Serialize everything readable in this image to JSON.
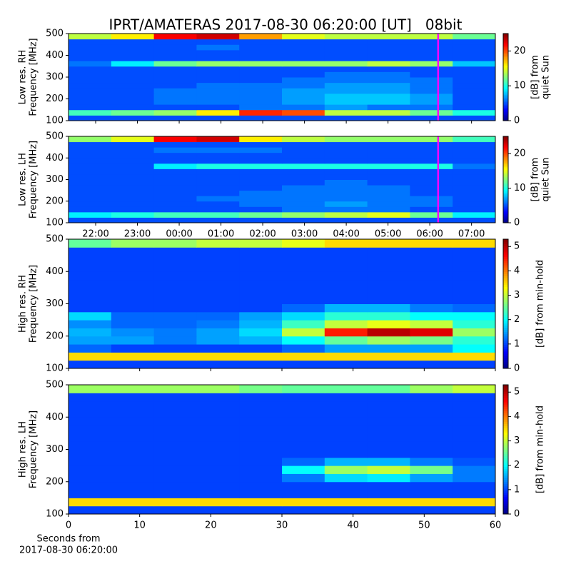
{
  "chart_data": [
    {
      "type": "heatmap",
      "title": "IPRT/AMATERAS 2017-08-30 06:20:00 [UT]   08bit",
      "ylabel": [
        "Low res. RH",
        "Frequency [MHz]"
      ],
      "ylim": [
        100,
        500
      ],
      "yticks": [
        100,
        200,
        300,
        400,
        500
      ],
      "xlim": [
        21.35,
        31.57
      ],
      "xticks": [
        22,
        23,
        24,
        25,
        26,
        27,
        28,
        29,
        30,
        31
      ],
      "xticklabels": false,
      "colormap": "jet",
      "colorbar": {
        "label": [
          "[dB] from",
          "quiet Sun"
        ],
        "lim": [
          0,
          25
        ],
        "ticks": [
          0,
          10,
          20
        ]
      },
      "marker": {
        "x": 30.2,
        "color": "#ff00ff"
      },
      "z": [
        [
          5,
          5,
          5,
          5,
          5,
          5,
          5,
          5,
          5,
          5
        ],
        [
          11,
          12,
          13,
          16,
          21,
          20,
          14,
          14,
          12,
          10
        ],
        [
          5,
          5,
          5,
          5,
          6,
          6,
          7,
          6,
          6,
          5
        ],
        [
          5,
          5,
          6,
          6,
          6,
          7,
          8,
          8,
          7,
          5
        ],
        [
          5,
          5,
          6,
          6,
          6,
          7,
          8,
          8,
          7,
          5
        ],
        [
          5,
          5,
          6,
          6,
          6,
          7,
          7,
          7,
          6,
          5
        ],
        [
          5,
          5,
          5,
          6,
          6,
          6,
          7,
          7,
          6,
          5
        ],
        [
          5,
          5,
          5,
          5,
          5,
          6,
          6,
          6,
          6,
          5
        ],
        [
          5,
          5,
          5,
          5,
          5,
          5,
          6,
          6,
          5,
          5
        ],
        [
          5,
          5,
          5,
          5,
          5,
          5,
          5,
          5,
          5,
          5
        ],
        [
          6,
          9,
          12,
          13,
          13,
          13,
          13,
          14,
          13,
          8
        ],
        [
          5,
          5,
          5,
          5,
          5,
          5,
          5,
          5,
          5,
          5
        ],
        [
          5,
          5,
          5,
          5,
          5,
          5,
          5,
          5,
          5,
          5
        ],
        [
          5,
          5,
          5,
          6,
          5,
          5,
          5,
          5,
          5,
          5
        ],
        [
          5,
          5,
          5,
          5,
          5,
          5,
          5,
          5,
          5,
          5
        ],
        [
          14,
          16,
          22,
          23,
          18,
          15,
          14,
          14,
          14,
          12
        ]
      ]
    },
    {
      "type": "heatmap",
      "ylabel": [
        "Low res. LH",
        "Frequency [MHz]"
      ],
      "ylim": [
        100,
        500
      ],
      "yticks": [
        100,
        200,
        300,
        400,
        500
      ],
      "xlim": [
        21.35,
        31.57
      ],
      "xticks": [
        {
          "value": 22,
          "label": "22:00"
        },
        {
          "value": 23,
          "label": "23:00"
        },
        {
          "value": 24,
          "label": "00:00"
        },
        {
          "value": 25,
          "label": "01:00"
        },
        {
          "value": 26,
          "label": "02:00"
        },
        {
          "value": 27,
          "label": "03:00"
        },
        {
          "value": 28,
          "label": "04:00"
        },
        {
          "value": 29,
          "label": "05:00"
        },
        {
          "value": 30,
          "label": "06:00"
        },
        {
          "value": 31,
          "label": "07:00"
        }
      ],
      "xticklabels": true,
      "colormap": "jet",
      "colorbar": {
        "label": [
          "[dB] from",
          "quiet Sun"
        ],
        "lim": [
          0,
          25
        ],
        "ticks": [
          0,
          10,
          20
        ]
      },
      "marker": {
        "x": 30.2,
        "color": "#ff00ff"
      },
      "z": [
        [
          5,
          5,
          5,
          5,
          5,
          5,
          5,
          5,
          5,
          5
        ],
        [
          9,
          10,
          11,
          11,
          12,
          13,
          14,
          15,
          12,
          9
        ],
        [
          5,
          5,
          5,
          5,
          5,
          6,
          6,
          6,
          5,
          5
        ],
        [
          5,
          5,
          5,
          5,
          6,
          6,
          7,
          6,
          6,
          5
        ],
        [
          5,
          5,
          5,
          6,
          6,
          6,
          6,
          6,
          6,
          5
        ],
        [
          5,
          5,
          5,
          5,
          6,
          6,
          6,
          6,
          5,
          5
        ],
        [
          5,
          5,
          5,
          5,
          5,
          6,
          6,
          6,
          5,
          5
        ],
        [
          5,
          5,
          5,
          5,
          5,
          5,
          6,
          5,
          5,
          5
        ],
        [
          5,
          5,
          5,
          5,
          5,
          5,
          5,
          5,
          5,
          5
        ],
        [
          5,
          5,
          5,
          5,
          5,
          5,
          5,
          5,
          5,
          5
        ],
        [
          5,
          5,
          9,
          10,
          10,
          10,
          10,
          10,
          10,
          6
        ],
        [
          5,
          5,
          5,
          5,
          5,
          5,
          5,
          5,
          5,
          5
        ],
        [
          5,
          5,
          5,
          5,
          5,
          5,
          5,
          5,
          5,
          5
        ],
        [
          5,
          5,
          6,
          6,
          6,
          5,
          5,
          5,
          5,
          5
        ],
        [
          5,
          5,
          5,
          5,
          5,
          5,
          5,
          5,
          5,
          5
        ],
        [
          13,
          15,
          22,
          23,
          16,
          14,
          13,
          13,
          13,
          11
        ]
      ]
    },
    {
      "type": "heatmap",
      "ylabel": [
        "High res. RH",
        "Frequency [MHz]"
      ],
      "ylim": [
        100,
        500
      ],
      "yticks": [
        100,
        200,
        300,
        400,
        500
      ],
      "xlim": [
        0,
        60
      ],
      "xticks": [
        0,
        10,
        20,
        30,
        40,
        50,
        60
      ],
      "xticklabels": false,
      "colormap": "jet",
      "colorbar": {
        "label": [
          "[dB] from min-hold"
        ],
        "lim": [
          0,
          5.3
        ],
        "ticks": [
          0,
          1,
          2,
          3,
          4,
          5
        ]
      },
      "z": [
        [
          1,
          1,
          1,
          1,
          1,
          1,
          1,
          1,
          1,
          1
        ],
        [
          3.5,
          3.5,
          3.5,
          3.5,
          3.5,
          3.5,
          3.5,
          3.5,
          3.5,
          3.5
        ],
        [
          1.2,
          1,
          1,
          1,
          1,
          1.2,
          1.5,
          1.5,
          1.5,
          2
        ],
        [
          1.5,
          1.5,
          1.3,
          1.5,
          1.6,
          2,
          2.5,
          2.8,
          2.6,
          2.2
        ],
        [
          1.6,
          1.4,
          1.3,
          1.5,
          1.8,
          3,
          4.5,
          5,
          4.8,
          2.8
        ],
        [
          1.4,
          1.2,
          1.2,
          1.3,
          1.6,
          2.3,
          3,
          3.2,
          3,
          2.2
        ],
        [
          1.8,
          1.2,
          1.2,
          1.2,
          1.5,
          1.8,
          2.2,
          2.2,
          2,
          2
        ],
        [
          1,
          1,
          1,
          1,
          1,
          1.2,
          1.6,
          1.6,
          1.3,
          1.2
        ],
        [
          1,
          1,
          1,
          1,
          1,
          1,
          1,
          1,
          1,
          1
        ],
        [
          1,
          1,
          1,
          1,
          1,
          1,
          1,
          1,
          1,
          1
        ],
        [
          1,
          1,
          1,
          1,
          1,
          1,
          1,
          1,
          1,
          1
        ],
        [
          1,
          1,
          1,
          1,
          1,
          1,
          1,
          1,
          1,
          1
        ],
        [
          1,
          1,
          1,
          1,
          1,
          1,
          1,
          1,
          1,
          1
        ],
        [
          1,
          1,
          1,
          1,
          1,
          1,
          1,
          1,
          1,
          1
        ],
        [
          1,
          1,
          1,
          1,
          1,
          1,
          1,
          1,
          1,
          1
        ],
        [
          2.5,
          2.8,
          2.8,
          3,
          3,
          3.2,
          3.5,
          3.5,
          3.5,
          3.5
        ]
      ]
    },
    {
      "type": "heatmap",
      "ylabel": [
        "High res. LH",
        "Frequency [MHz]"
      ],
      "ylim": [
        100,
        500
      ],
      "yticks": [
        100,
        200,
        300,
        400,
        500
      ],
      "xlim": [
        0,
        60
      ],
      "xticks": [
        0,
        10,
        20,
        30,
        40,
        50,
        60
      ],
      "xticklabels": true,
      "xlabel": [
        "Seconds from",
        "2017-08-30 06:20:00"
      ],
      "colormap": "jet",
      "colorbar": {
        "label": [
          "[dB] from min-hold"
        ],
        "lim": [
          0,
          5.3
        ],
        "ticks": [
          0,
          1,
          2,
          3,
          4,
          5
        ]
      },
      "z": [
        [
          1,
          1,
          1,
          1,
          1,
          1,
          1,
          1,
          1,
          1
        ],
        [
          3.5,
          3.5,
          3.5,
          3.5,
          3.5,
          3.5,
          3.5,
          3.5,
          3.5,
          3.5
        ],
        [
          1,
          1,
          1,
          1,
          1,
          1,
          1,
          1,
          1,
          1
        ],
        [
          1,
          1,
          1,
          1,
          1,
          1,
          1,
          1,
          1,
          1
        ],
        [
          1,
          1,
          1,
          1,
          1,
          1.3,
          1.8,
          1.9,
          1.5,
          1.3
        ],
        [
          1,
          1,
          1,
          1,
          1,
          2,
          2.8,
          3,
          2.6,
          1.3
        ],
        [
          1,
          1,
          1,
          1,
          1,
          1.2,
          1.6,
          1.6,
          1.3,
          1.1
        ],
        [
          1,
          1,
          1,
          1,
          1,
          1,
          1,
          1,
          1,
          1
        ],
        [
          1,
          1,
          1,
          1,
          1,
          1,
          1,
          1,
          1,
          1
        ],
        [
          1,
          1,
          1,
          1,
          1,
          1,
          1,
          1,
          1,
          1
        ],
        [
          1,
          1,
          1,
          1,
          1,
          1,
          1,
          1,
          1,
          1
        ],
        [
          1,
          1,
          1,
          1,
          1,
          1,
          1,
          1,
          1,
          1
        ],
        [
          1,
          1,
          1,
          1,
          1,
          1,
          1,
          1,
          1,
          1
        ],
        [
          1,
          1,
          1,
          1,
          1,
          1,
          1,
          1,
          1,
          1
        ],
        [
          1,
          1,
          1,
          1,
          1,
          1,
          1,
          1,
          1,
          1
        ],
        [
          2.8,
          2.8,
          2.8,
          2.8,
          2.6,
          2.5,
          2.5,
          2.5,
          2.8,
          3
        ]
      ]
    }
  ]
}
